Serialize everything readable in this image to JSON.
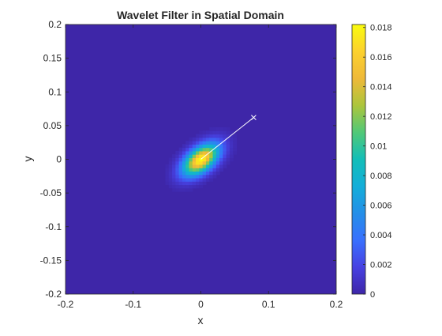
{
  "chart_data": {
    "type": "heatmap",
    "title": "Wavelet Filter in Spatial Domain",
    "xlabel": "x",
    "ylabel": "y",
    "xlim": [
      -0.2,
      0.2
    ],
    "ylim": [
      -0.2,
      0.2
    ],
    "xticks": [
      -0.2,
      -0.1,
      0,
      0.1,
      0.2
    ],
    "xtick_labels": [
      "-0.2",
      "-0.1",
      "0",
      "0.1",
      "0.2"
    ],
    "yticks": [
      -0.2,
      -0.15,
      -0.1,
      -0.05,
      0,
      0.05,
      0.1,
      0.15,
      0.2
    ],
    "ytick_labels": [
      "-0.2",
      "-0.15",
      "-0.1",
      "-0.05",
      "0",
      "0.05",
      "0.1",
      "0.15",
      "0.2"
    ],
    "colormap": "parula",
    "clim": [
      0,
      0.0182
    ],
    "colorbar_ticks": [
      0,
      0.002,
      0.004,
      0.006,
      0.008,
      0.01,
      0.012,
      0.014,
      0.016,
      0.018
    ],
    "colorbar_tick_labels": [
      "0",
      "0.002",
      "0.004",
      "0.006",
      "0.008",
      "0.01",
      "0.012",
      "0.014",
      "0.016",
      "0.018"
    ],
    "peak": {
      "x": 0,
      "y": 0,
      "value": 0.0182
    },
    "orientation_line": {
      "x": [
        0,
        0.078
      ],
      "y": [
        0,
        0.062
      ],
      "color": "#ffffff",
      "end_marker": "x"
    },
    "grid": false,
    "colors": {
      "background": "#3e26a8",
      "axis": "#262626"
    }
  }
}
